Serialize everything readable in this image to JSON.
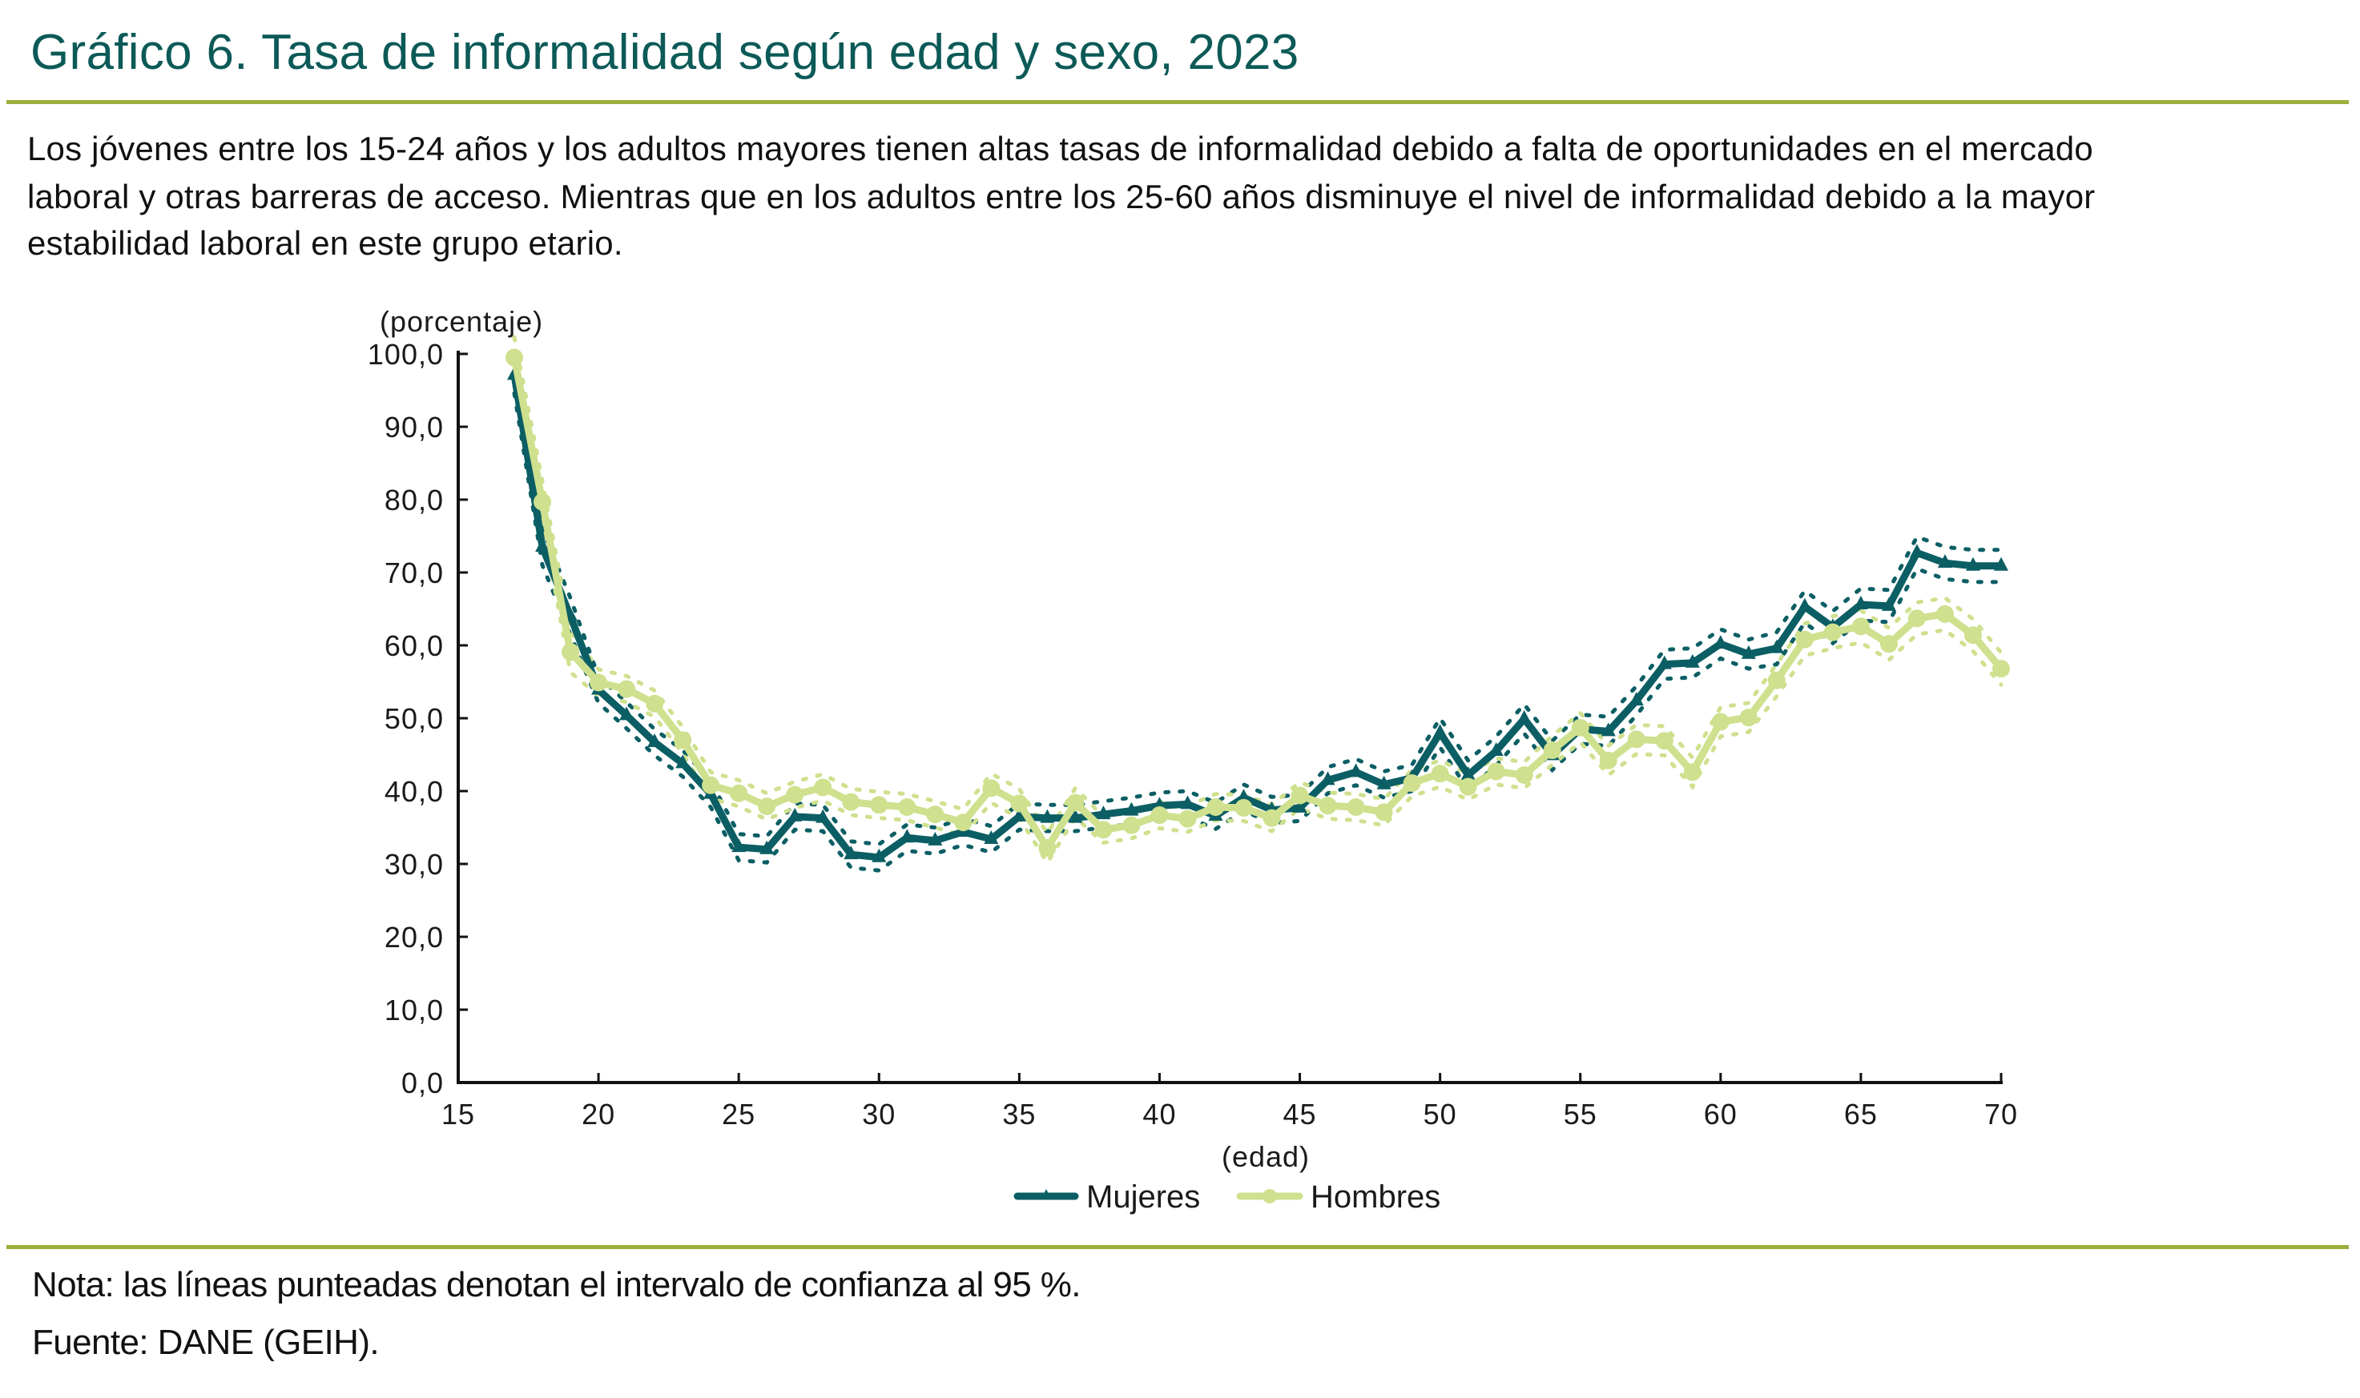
{
  "header": {
    "title": "Gráfico 6. Tasa de informalidad según edad y sexo, 2023",
    "subtitle_lines": [
      "Los jóvenes entre los 15-24 años y los adultos mayores tienen altas tasas de informalidad debido a falta de oportunidades en el mercado",
      "laboral y otras barreras de acceso. Mientras que en los adultos entre los 25-60 años disminuye el nivel de informalidad debido a la mayor",
      "estabilidad laboral en este grupo etario."
    ]
  },
  "footer": {
    "note": "Nota: las líneas punteadas denotan el intervalo de confianza al 95 %.",
    "source": "Fuente: DANE (GEIH)."
  },
  "colors": {
    "title": "#0c5a57",
    "rule": "#9bb03c",
    "mujeres": "#0b5e64",
    "hombres": "#cfe08e"
  },
  "chart_data": {
    "type": "line",
    "title": "Tasa de informalidad según edad y sexo, 2023",
    "ylabel": "(porcentaje)",
    "xlabel": "(edad)",
    "xlim": [
      15,
      70
    ],
    "ylim": [
      0,
      100
    ],
    "xticks": [
      15,
      20,
      25,
      30,
      35,
      40,
      45,
      50,
      55,
      60,
      65,
      70
    ],
    "yticks": [
      0,
      10,
      20,
      30,
      40,
      50,
      60,
      70,
      80,
      90,
      100
    ],
    "ytick_labels": [
      "0,0",
      "10,0",
      "20,0",
      "30,0",
      "40,0",
      "50,0",
      "60,0",
      "70,0",
      "80,0",
      "90,0",
      "100,0"
    ],
    "grid": false,
    "legend_position": "bottom-center",
    "x": [
      17,
      18,
      19,
      20,
      21,
      22,
      23,
      24,
      25,
      26,
      27,
      28,
      29,
      30,
      31,
      32,
      33,
      34,
      35,
      36,
      37,
      38,
      39,
      40,
      41,
      42,
      43,
      44,
      45,
      46,
      47,
      48,
      49,
      50,
      51,
      52,
      53,
      54,
      55,
      56,
      57,
      58,
      59,
      60,
      61,
      62,
      63,
      64,
      65,
      66,
      67,
      68,
      69,
      70
    ],
    "series": [
      {
        "name": "Mujeres",
        "marker": "triangle",
        "values": [
          97.1,
          73.5,
          64.0,
          53.9,
          50.4,
          46.7,
          43.8,
          39.6,
          32.3,
          32.0,
          36.5,
          36.3,
          31.3,
          30.9,
          33.6,
          33.2,
          34.4,
          33.4,
          36.5,
          36.3,
          36.3,
          36.8,
          37.3,
          38.0,
          38.2,
          36.6,
          39.1,
          37.4,
          37.7,
          41.5,
          42.6,
          40.9,
          41.8,
          48.0,
          42.2,
          45.5,
          49.9,
          44.9,
          48.5,
          48.2,
          52.4,
          57.4,
          57.6,
          60.2,
          58.8,
          59.6,
          65.3,
          62.5,
          65.6,
          65.4,
          72.7,
          71.3,
          70.9,
          70.9
        ],
        "ci95_halfwidth": [
          2.5,
          2.5,
          2.5,
          1.8,
          1.8,
          1.8,
          1.8,
          1.8,
          1.8,
          1.8,
          1.8,
          1.8,
          1.8,
          1.8,
          1.8,
          1.8,
          1.8,
          1.8,
          1.8,
          1.8,
          1.8,
          1.8,
          1.8,
          1.8,
          1.8,
          1.8,
          1.8,
          1.8,
          1.8,
          1.8,
          1.8,
          1.8,
          1.8,
          2.0,
          2.0,
          2.0,
          2.0,
          2.0,
          2.0,
          2.0,
          2.0,
          2.0,
          2.0,
          2.0,
          2.0,
          2.2,
          2.2,
          2.2,
          2.2,
          2.2,
          2.2,
          2.2,
          2.2,
          2.2
        ]
      },
      {
        "name": "Hombres",
        "marker": "circle",
        "values": [
          99.5,
          79.7,
          59.1,
          54.9,
          54.0,
          52.0,
          47.0,
          40.8,
          39.7,
          37.9,
          39.5,
          40.5,
          38.5,
          38.1,
          37.8,
          36.8,
          35.7,
          40.4,
          38.3,
          32.2,
          38.4,
          34.7,
          35.3,
          36.7,
          36.2,
          37.8,
          37.7,
          36.3,
          39.4,
          38.0,
          37.8,
          37.1,
          41.1,
          42.4,
          40.6,
          42.7,
          42.2,
          45.6,
          48.7,
          44.2,
          47.1,
          46.9,
          42.6,
          49.5,
          50.1,
          55.2,
          60.8,
          61.8,
          62.6,
          60.2,
          63.7,
          64.3,
          61.4,
          56.8
        ],
        "ci95_halfwidth": [
          2.8,
          2.8,
          2.8,
          1.8,
          1.8,
          1.8,
          1.8,
          1.8,
          1.8,
          1.8,
          1.8,
          1.8,
          1.8,
          1.8,
          1.8,
          1.8,
          1.8,
          2.0,
          2.0,
          2.0,
          2.0,
          1.8,
          1.8,
          1.8,
          1.8,
          1.8,
          1.8,
          1.8,
          1.8,
          1.8,
          1.8,
          1.8,
          1.8,
          1.8,
          1.8,
          1.8,
          1.8,
          2.0,
          2.0,
          2.0,
          2.0,
          2.0,
          2.0,
          2.0,
          2.0,
          2.2,
          2.2,
          2.2,
          2.2,
          2.2,
          2.2,
          2.2,
          2.2,
          2.2
        ]
      }
    ]
  }
}
